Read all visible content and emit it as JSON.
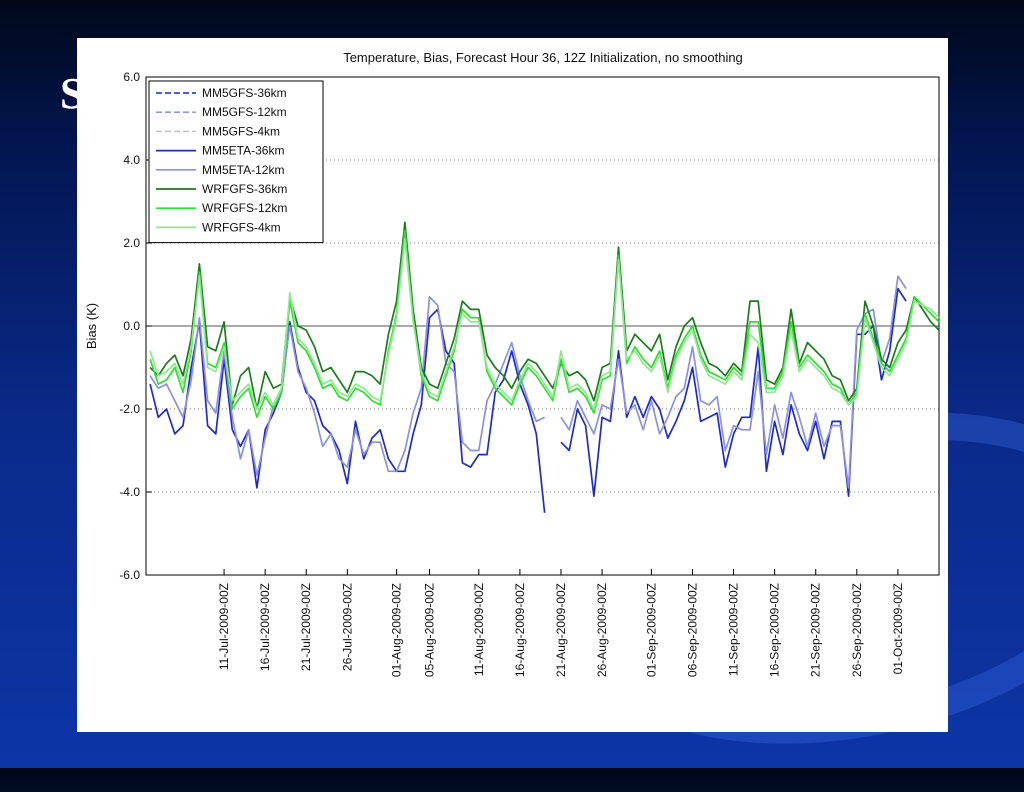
{
  "slide": {
    "title": "S                                                                   s"
  },
  "chart_data": {
    "type": "line",
    "title": "Temperature, Bias, Forecast Hour 36, 12Z Initialization, no smoothing",
    "xlabel": "",
    "ylabel": "Bias (K)",
    "ylim": [
      -6,
      6
    ],
    "y_ticks": [
      "-6.0",
      "-4.0",
      "-2.0",
      "0.0",
      "2.0",
      "4.0",
      "6.0"
    ],
    "x_ticks": [
      {
        "day": 10,
        "label": "11-Jul-2009-00Z"
      },
      {
        "day": 15,
        "label": "16-Jul-2009-00Z"
      },
      {
        "day": 20,
        "label": "21-Jul-2009-00Z"
      },
      {
        "day": 25,
        "label": "26-Jul-2009-00Z"
      },
      {
        "day": 31,
        "label": "01-Aug-2009-00Z"
      },
      {
        "day": 35,
        "label": "05-Aug-2009-00Z"
      },
      {
        "day": 41,
        "label": "11-Aug-2009-00Z"
      },
      {
        "day": 46,
        "label": "16-Aug-2009-00Z"
      },
      {
        "day": 51,
        "label": "21-Aug-2009-00Z"
      },
      {
        "day": 56,
        "label": "26-Aug-2009-00Z"
      },
      {
        "day": 62,
        "label": "01-Sep-2009-00Z"
      },
      {
        "day": 67,
        "label": "06-Sep-2009-00Z"
      },
      {
        "day": 72,
        "label": "11-Sep-2009-00Z"
      },
      {
        "day": 77,
        "label": "16-Sep-2009-00Z"
      },
      {
        "day": 82,
        "label": "21-Sep-2009-00Z"
      },
      {
        "day": 87,
        "label": "26-Sep-2009-00Z"
      },
      {
        "day": 92,
        "label": "01-Oct-2009-00Z"
      }
    ],
    "x_day_range": [
      0.5,
      97
    ],
    "grid": "dotted-horizontal",
    "reference_line": 0,
    "legend_position": "top-left",
    "x": [
      1,
      2,
      3,
      4,
      5,
      6,
      7,
      8,
      9,
      10,
      11,
      12,
      13,
      14,
      15,
      16,
      17,
      18,
      19,
      20,
      21,
      22,
      23,
      24,
      25,
      26,
      27,
      28,
      29,
      30,
      31,
      32,
      33,
      34,
      35,
      36,
      37,
      38,
      39,
      40,
      41,
      42,
      43,
      44,
      45,
      46,
      47,
      48,
      49,
      50,
      51,
      52,
      53,
      54,
      55,
      56,
      57,
      58,
      59,
      60,
      61,
      62,
      63,
      64,
      65,
      66,
      67,
      68,
      69,
      70,
      71,
      72,
      73,
      74,
      75,
      76,
      77,
      78,
      79,
      80,
      81,
      82,
      83,
      84,
      85,
      86,
      87,
      88,
      89,
      90,
      91,
      92,
      93,
      94,
      95,
      96,
      97
    ],
    "series": [
      {
        "name": "MM5GFS-36km",
        "color": "#1a2bb8",
        "style": "dashed",
        "width": 1.6,
        "values": [
          null,
          null,
          null,
          null,
          null,
          null,
          null,
          null,
          null,
          null,
          null,
          null,
          null,
          null,
          null,
          null,
          null,
          null,
          null,
          null,
          null,
          null,
          null,
          null,
          null,
          null,
          null,
          null,
          null,
          null,
          null,
          null,
          null,
          null,
          null,
          null,
          null,
          null,
          null,
          null,
          null,
          null,
          null,
          null,
          null,
          null,
          null,
          null,
          null,
          null,
          null,
          null,
          null,
          null,
          null,
          null,
          null,
          null,
          null,
          null,
          null,
          null,
          null,
          null,
          null,
          null,
          null,
          null,
          null,
          null,
          null,
          null,
          null,
          null,
          null,
          null,
          null,
          null,
          null,
          null,
          null,
          null,
          null,
          null,
          null,
          null,
          null,
          null,
          null,
          null,
          null,
          null,
          null,
          null,
          null,
          null,
          null
        ]
      },
      {
        "name": "MM5GFS-12km",
        "color": "#7d86d8",
        "style": "dashed",
        "width": 1.4,
        "values": [
          null,
          null,
          null,
          null,
          null,
          null,
          null,
          null,
          null,
          null,
          null,
          null,
          null,
          null,
          null,
          null,
          null,
          null,
          null,
          null,
          null,
          null,
          null,
          null,
          null,
          null,
          null,
          null,
          null,
          null,
          null,
          null,
          null,
          null,
          null,
          null,
          null,
          null,
          null,
          null,
          null,
          null,
          null,
          null,
          null,
          null,
          null,
          null,
          null,
          null,
          null,
          null,
          null,
          null,
          null,
          null,
          null,
          null,
          null,
          null,
          null,
          null,
          null,
          null,
          null,
          null,
          null,
          null,
          null,
          null,
          null,
          null,
          null,
          null,
          null,
          null,
          null,
          null,
          null,
          null,
          null,
          null,
          null,
          null,
          null,
          null,
          null,
          null,
          null,
          null,
          null,
          null,
          null,
          null,
          null,
          null,
          null
        ]
      },
      {
        "name": "MM5GFS-4km",
        "color": "#bdbdbd",
        "style": "dashed",
        "width": 1.4,
        "values": [
          null,
          null,
          null,
          null,
          null,
          null,
          null,
          null,
          null,
          null,
          null,
          null,
          null,
          null,
          null,
          null,
          null,
          null,
          null,
          null,
          null,
          null,
          null,
          null,
          null,
          null,
          null,
          null,
          null,
          null,
          null,
          null,
          null,
          null,
          null,
          null,
          null,
          null,
          null,
          null,
          null,
          null,
          null,
          null,
          null,
          null,
          null,
          null,
          null,
          null,
          null,
          null,
          null,
          null,
          null,
          null,
          null,
          null,
          null,
          null,
          null,
          null,
          null,
          null,
          null,
          null,
          null,
          null,
          null,
          null,
          null,
          null,
          null,
          null,
          null,
          null,
          null,
          null,
          null,
          null,
          null,
          null,
          null,
          null,
          null,
          null,
          null,
          null,
          null,
          null,
          null,
          null,
          null,
          null,
          null,
          null,
          null
        ]
      },
      {
        "name": "MM5ETA-36km",
        "color": "#1f2cc4",
        "style": "solid",
        "width": 1.7,
        "values": [
          -1.4,
          -2.2,
          -2.0,
          -2.6,
          -2.4,
          -1.0,
          0.1,
          -2.4,
          -2.6,
          -0.8,
          -2.5,
          -2.9,
          -2.5,
          -3.9,
          -2.5,
          -2.1,
          -1.6,
          0.1,
          -1.0,
          -1.6,
          -1.8,
          -2.4,
          -2.6,
          -3.0,
          -3.8,
          -2.3,
          -3.2,
          -2.7,
          -2.5,
          -3.2,
          -3.5,
          -3.5,
          -2.6,
          -1.9,
          0.2,
          0.4,
          -0.6,
          -0.9,
          -3.3,
          -3.4,
          -3.1,
          -3.1,
          -1.6,
          -1.3,
          -0.6,
          -1.4,
          -1.9,
          -2.6,
          -4.5,
          null,
          -2.8,
          -3.0,
          -2.0,
          -2.4,
          -4.1,
          -2.2,
          -2.3,
          -0.6,
          -2.2,
          -1.7,
          -2.2,
          -1.7,
          -2.0,
          -2.7,
          -2.3,
          -1.8,
          -1.0,
          -2.3,
          -2.2,
          -2.1,
          -3.4,
          -2.6,
          -2.2,
          -2.2,
          -0.5,
          -3.5,
          -2.3,
          -3.1,
          -1.9,
          -2.6,
          -3.0,
          -2.3,
          -3.2,
          -2.3,
          -2.3,
          -4.1,
          -0.2,
          -0.2,
          0.0,
          -1.3,
          -0.6,
          0.9,
          0.6,
          null,
          null,
          null,
          null
        ]
      },
      {
        "name": "MM5ETA-12km",
        "color": "#8a91e0",
        "style": "solid",
        "width": 1.7,
        "values": [
          -1.2,
          -1.5,
          -1.4,
          -1.8,
          -2.2,
          -1.3,
          0.2,
          -1.8,
          -2.1,
          -0.6,
          -2.2,
          -3.2,
          -2.5,
          -3.6,
          -2.7,
          -1.9,
          -1.5,
          0.0,
          -1.1,
          -1.5,
          -2.1,
          -2.9,
          -2.6,
          -3.2,
          -3.4,
          -2.5,
          -3.1,
          -2.8,
          -2.8,
          -3.5,
          -3.5,
          -3.0,
          -2.1,
          -1.5,
          0.7,
          0.5,
          -0.9,
          -1.1,
          -2.8,
          -3.0,
          -3.0,
          -1.8,
          -1.4,
          -0.9,
          -0.4,
          -1.2,
          -1.8,
          -2.3,
          -2.2,
          null,
          -2.2,
          -2.5,
          -1.8,
          -2.2,
          -2.6,
          -1.9,
          -2.0,
          -0.8,
          -2.1,
          -1.9,
          -2.5,
          -1.8,
          -2.6,
          -2.2,
          -1.7,
          -1.5,
          -0.5,
          -1.8,
          -1.9,
          -1.7,
          -3.0,
          -2.4,
          -2.5,
          -2.5,
          -1.1,
          -3.1,
          -1.9,
          -2.7,
          -1.6,
          -2.2,
          -2.9,
          -2.1,
          -2.9,
          -2.4,
          -2.4,
          -3.9,
          -0.1,
          0.3,
          0.4,
          -0.9,
          -0.3,
          1.2,
          0.9,
          null,
          null,
          null,
          null
        ]
      },
      {
        "name": "WRFGFS-36km",
        "color": "#1f7a1f",
        "style": "solid",
        "width": 1.7,
        "values": [
          -1.0,
          -1.2,
          -0.9,
          -0.7,
          -1.2,
          -0.3,
          1.5,
          -0.5,
          -0.6,
          0.1,
          -1.9,
          -1.2,
          -1.0,
          -2.0,
          -1.1,
          -1.5,
          -1.4,
          0.7,
          0.0,
          -0.1,
          -0.5,
          -1.1,
          -1.0,
          -1.3,
          -1.6,
          -1.1,
          -1.1,
          -1.2,
          -1.4,
          -0.2,
          0.6,
          2.5,
          0.4,
          -1.0,
          -1.4,
          -1.5,
          -0.9,
          -0.3,
          0.6,
          0.4,
          0.4,
          -0.7,
          -1.0,
          -1.2,
          -1.5,
          -1.1,
          -0.8,
          -0.9,
          -1.2,
          -1.5,
          -0.9,
          -1.2,
          -1.1,
          -1.3,
          -1.8,
          -1.0,
          -0.9,
          1.9,
          -0.6,
          -0.2,
          -0.4,
          -0.6,
          -0.2,
          -1.3,
          -0.5,
          0.0,
          0.2,
          -0.4,
          -0.9,
          -1.0,
          -1.2,
          -0.9,
          -1.1,
          0.6,
          0.6,
          -1.3,
          -1.4,
          -1.0,
          0.4,
          -0.9,
          -0.4,
          -0.6,
          -0.8,
          -1.2,
          -1.3,
          -1.8,
          -1.5,
          0.6,
          0.0,
          -0.8,
          -1.0,
          -0.4,
          -0.1,
          0.7,
          0.4,
          0.1,
          -0.1
        ]
      },
      {
        "name": "WRFGFS-12km",
        "color": "#2ee02e",
        "style": "solid",
        "width": 1.7,
        "values": [
          -0.8,
          -1.4,
          -1.3,
          -1.0,
          -1.6,
          -0.6,
          1.3,
          -0.9,
          -1.0,
          -0.4,
          -2.0,
          -1.7,
          -1.5,
          -2.2,
          -1.7,
          -2.0,
          -1.6,
          0.6,
          -0.4,
          -0.6,
          -1.0,
          -1.5,
          -1.4,
          -1.7,
          -1.8,
          -1.5,
          -1.6,
          -1.8,
          -1.9,
          -0.6,
          0.3,
          2.3,
          0.2,
          -1.2,
          -1.7,
          -1.8,
          -1.2,
          -0.6,
          0.4,
          0.2,
          0.2,
          -1.1,
          -1.5,
          -1.7,
          -1.9,
          -1.4,
          -1.0,
          -1.2,
          -1.5,
          -1.8,
          -0.8,
          -1.6,
          -1.5,
          -1.7,
          -2.1,
          -1.3,
          -1.2,
          1.7,
          -0.9,
          -0.5,
          -0.8,
          -1.0,
          -0.6,
          -1.5,
          -0.7,
          -0.3,
          0.0,
          -0.7,
          -1.1,
          -1.2,
          -1.3,
          -1.0,
          -1.2,
          0.1,
          0.1,
          -1.5,
          -1.5,
          -1.1,
          0.1,
          -1.0,
          -0.7,
          -0.9,
          -1.1,
          -1.4,
          -1.5,
          -1.9,
          -1.6,
          0.3,
          -0.3,
          -0.9,
          -1.1,
          -0.7,
          -0.3,
          0.7,
          0.5,
          0.3,
          0.1
        ]
      },
      {
        "name": "WRFGFS-4km",
        "color": "#8fe88f",
        "style": "solid",
        "width": 1.7,
        "values": [
          -0.6,
          -1.2,
          -1.1,
          -0.9,
          -1.4,
          -0.5,
          1.2,
          -1.0,
          -1.1,
          -0.5,
          -1.8,
          -1.6,
          -1.4,
          -2.0,
          -1.6,
          -1.9,
          -1.5,
          0.8,
          -0.3,
          -0.5,
          -0.9,
          -1.4,
          -1.3,
          -1.6,
          -1.7,
          -1.4,
          -1.5,
          -1.7,
          -1.8,
          -0.7,
          0.2,
          2.1,
          0.1,
          -1.1,
          -1.6,
          -1.7,
          -1.1,
          -0.5,
          0.3,
          0.1,
          0.1,
          -1.0,
          -1.4,
          -1.6,
          -1.8,
          -1.3,
          -0.9,
          -1.1,
          -1.4,
          -1.7,
          -0.6,
          -1.5,
          -1.4,
          -1.6,
          -2.0,
          -1.2,
          -1.1,
          1.6,
          -0.8,
          -0.6,
          -0.9,
          -1.1,
          -0.7,
          -1.6,
          -0.8,
          -0.4,
          -0.1,
          -0.8,
          -1.2,
          -1.3,
          -1.4,
          -1.1,
          -1.3,
          -0.2,
          -0.4,
          -1.6,
          -1.6,
          -1.2,
          -0.1,
          -1.1,
          -0.8,
          -1.0,
          -1.2,
          -1.5,
          -1.6,
          -1.9,
          -1.7,
          0.2,
          -0.4,
          -1.0,
          -1.2,
          -0.8,
          -0.4,
          0.6,
          0.5,
          0.4,
          0.2
        ]
      }
    ]
  }
}
